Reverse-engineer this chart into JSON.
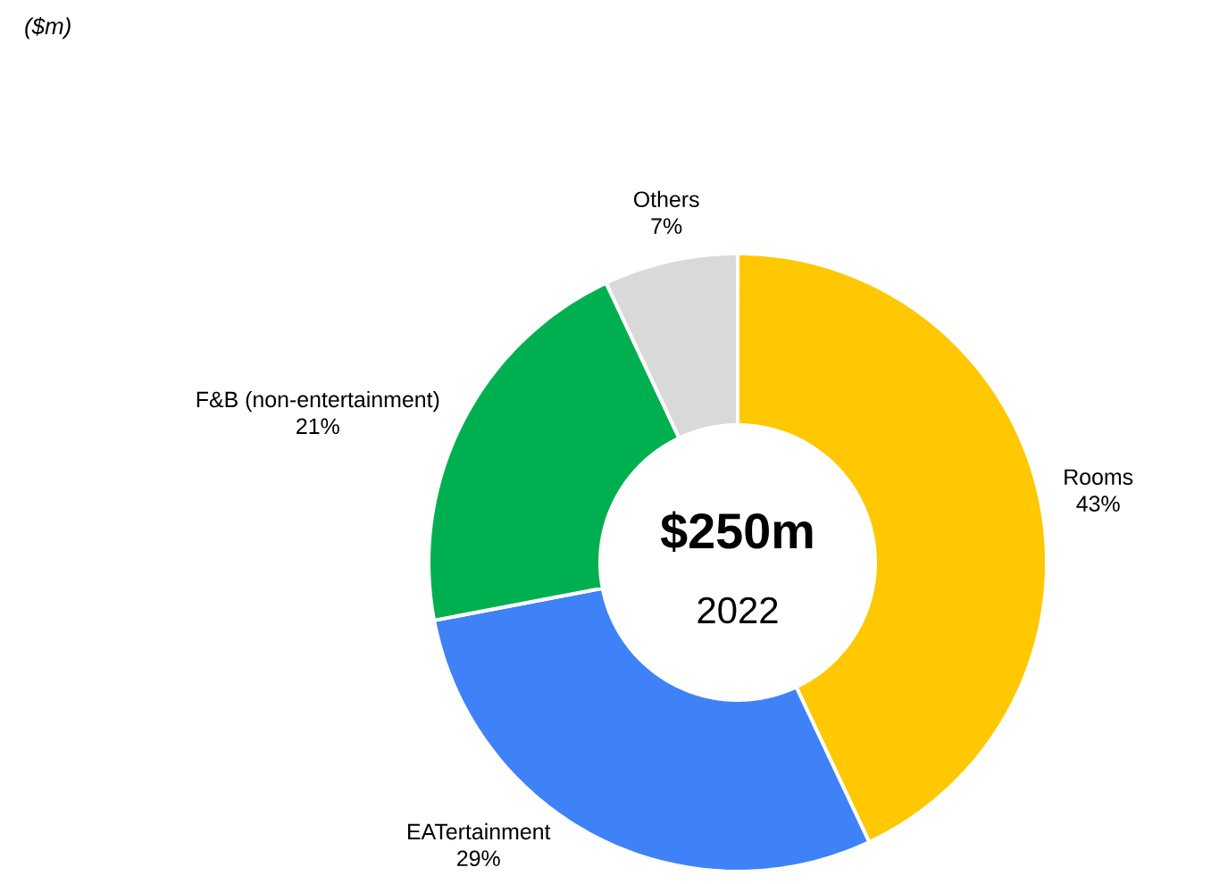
{
  "chart_data": {
    "type": "donut",
    "title": "$250m",
    "subtitle": "2022",
    "annotations": [
      "($m)"
    ],
    "categories": [
      "Rooms",
      "EATertainment",
      "F&B (non-entertainment)",
      "Others"
    ],
    "values": [
      43,
      29,
      21,
      7
    ],
    "value_labels": [
      "43%",
      "29%",
      "21%",
      "7%"
    ],
    "colors": [
      "#ffc800",
      "#3f82f7",
      "#00b050",
      "#d9d9d9"
    ]
  }
}
